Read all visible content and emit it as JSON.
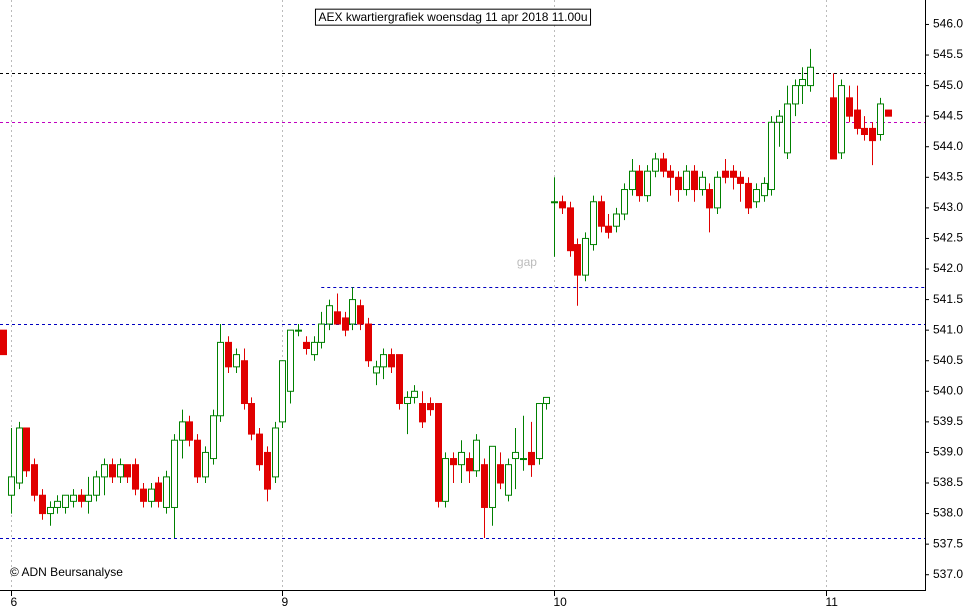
{
  "chart_data": {
    "type": "candlestick",
    "title": "AEX kwartiergrafiek woensdag 11 apr 2018 11.00u",
    "watermark": "© ADN Beursanalyse",
    "annotations": [
      {
        "text": "gap",
        "x": 66.5,
        "y": 542.1
      }
    ],
    "up_color": "#008000",
    "down_color": "#e00000",
    "xlim": [
      -1.4,
      117.8
    ],
    "ylim": [
      536.75,
      546.4
    ],
    "xticks": [
      {
        "value": 0,
        "label": "6"
      },
      {
        "value": 35,
        "label": "9"
      },
      {
        "value": 70,
        "label": "10"
      },
      {
        "value": 105,
        "label": "11"
      }
    ],
    "yticks": [
      {
        "value": 537,
        "label": "537.0"
      },
      {
        "value": 537.5,
        "label": "537.5"
      },
      {
        "value": 538,
        "label": "538.0"
      },
      {
        "value": 538.5,
        "label": "538.5"
      },
      {
        "value": 539,
        "label": "539.0"
      },
      {
        "value": 539.5,
        "label": "539.5"
      },
      {
        "value": 540,
        "label": "540.0"
      },
      {
        "value": 540.5,
        "label": "540.5"
      },
      {
        "value": 541,
        "label": "541.0"
      },
      {
        "value": 541.5,
        "label": "541.5"
      },
      {
        "value": 542,
        "label": "542.0"
      },
      {
        "value": 542.5,
        "label": "542.5"
      },
      {
        "value": 543,
        "label": "543.0"
      },
      {
        "value": 543.5,
        "label": "543.5"
      },
      {
        "value": 544,
        "label": "544.0"
      },
      {
        "value": 544.5,
        "label": "544.5"
      },
      {
        "value": 545,
        "label": "545.0"
      },
      {
        "value": 545.5,
        "label": "545.5"
      },
      {
        "value": 546,
        "label": "546.0"
      }
    ],
    "xgrid": true,
    "hlines": [
      {
        "value": 545.2,
        "color": "#000000",
        "from": -1.4
      },
      {
        "value": 544.4,
        "color": "#c000c0",
        "from": -1.4
      },
      {
        "value": 541.7,
        "color": "#0000c0",
        "from": 40
      },
      {
        "value": 541.1,
        "color": "#0000c0",
        "from": -1.4
      },
      {
        "value": 537.6,
        "color": "#0000c0",
        "from": -1.4
      }
    ],
    "x": [
      -1,
      0,
      1,
      2,
      3,
      4,
      5,
      6,
      7,
      8,
      9,
      10,
      11,
      12,
      13,
      14,
      15,
      16,
      17,
      18,
      19,
      20,
      21,
      22,
      23,
      24,
      25,
      26,
      27,
      28,
      29,
      30,
      31,
      32,
      33,
      34,
      35,
      36,
      37,
      38,
      39,
      40,
      41,
      42,
      43,
      44,
      45,
      46,
      47,
      48,
      49,
      50,
      51,
      52,
      53,
      54,
      55,
      56,
      57,
      58,
      59,
      60,
      61,
      62,
      63,
      64,
      65,
      66,
      67,
      68,
      69,
      70,
      71,
      72,
      73,
      74,
      75,
      76,
      77,
      78,
      79,
      80,
      81,
      82,
      83,
      84,
      85,
      86,
      87,
      88,
      89,
      90,
      91,
      92,
      93,
      94,
      95,
      96,
      97,
      98,
      99,
      100,
      101,
      102,
      103,
      106,
      107,
      108,
      109,
      110,
      111,
      112,
      113
    ],
    "open": [
      541.0,
      538.3,
      538.5,
      539.4,
      538.8,
      538.3,
      538.0,
      538.1,
      538.1,
      538.2,
      538.3,
      538.2,
      538.3,
      538.6,
      538.8,
      538.6,
      538.8,
      538.8,
      538.4,
      538.2,
      538.5,
      538.1,
      538.1,
      539.2,
      539.5,
      539.2,
      538.6,
      538.9,
      539.6,
      540.8,
      540.4,
      540.5,
      539.8,
      539.3,
      539.0,
      538.6,
      539.5,
      540.0,
      541.0,
      540.8,
      540.6,
      540.8,
      541.1,
      541.3,
      541.2,
      541.1,
      541.4,
      541.1,
      540.3,
      540.4,
      540.6,
      540.6,
      539.8,
      539.9,
      539.8,
      539.8,
      539.8,
      538.2,
      538.9,
      538.8,
      538.9,
      538.7,
      538.8,
      538.1,
      538.8,
      538.3,
      538.9,
      538.9,
      539.0,
      538.9,
      539.8,
      543.1,
      543.1,
      543.0,
      542.4,
      541.9,
      542.4,
      543.1,
      542.7,
      542.7,
      542.9,
      543.3,
      543.6,
      543.2,
      543.6,
      543.8,
      543.6,
      543.5,
      543.3,
      543.6,
      543.3,
      543.3,
      543.0,
      543.6,
      543.6,
      543.5,
      543.4,
      543.1,
      543.2,
      543.3,
      544.4,
      543.9,
      544.7,
      545.0,
      545.0,
      544.8,
      543.9,
      544.8,
      544.6,
      544.3,
      544.3,
      544.2,
      544.6
    ],
    "high": [
      541.0,
      539.4,
      539.5,
      539.4,
      538.9,
      538.4,
      538.2,
      538.3,
      538.3,
      538.4,
      538.4,
      538.6,
      538.7,
      538.9,
      538.9,
      538.9,
      538.8,
      538.9,
      538.5,
      538.5,
      538.6,
      538.7,
      539.3,
      539.7,
      539.6,
      539.3,
      539.1,
      539.7,
      541.1,
      540.9,
      540.7,
      540.7,
      539.9,
      539.4,
      539.1,
      539.5,
      540.5,
      541.0,
      541.1,
      540.9,
      540.9,
      541.3,
      541.5,
      541.6,
      541.3,
      541.7,
      541.5,
      541.2,
      540.5,
      540.7,
      540.7,
      540.6,
      540.0,
      540.1,
      540.0,
      539.9,
      539.8,
      539.0,
      539.0,
      539.2,
      539.0,
      539.3,
      538.9,
      539.1,
      539.0,
      538.9,
      539.4,
      539.6,
      539.5,
      539.8,
      539.9,
      543.5,
      543.2,
      543.1,
      542.5,
      542.6,
      543.2,
      543.2,
      542.9,
      543.0,
      543.4,
      543.8,
      543.7,
      543.7,
      543.9,
      543.9,
      543.7,
      543.6,
      543.7,
      543.7,
      543.6,
      543.4,
      543.6,
      543.8,
      543.7,
      543.6,
      543.5,
      543.4,
      543.5,
      544.5,
      544.6,
      545.0,
      545.1,
      545.3,
      545.6,
      545.2,
      545.1,
      545.0,
      545.0,
      544.5,
      544.4,
      544.8,
      544.6
    ],
    "low": [
      540.6,
      538.0,
      538.4,
      538.6,
      538.2,
      537.9,
      537.8,
      538.0,
      538.0,
      538.1,
      538.1,
      538.0,
      538.2,
      538.3,
      538.5,
      538.5,
      538.5,
      538.3,
      538.1,
      538.1,
      538.1,
      538.0,
      537.6,
      538.9,
      539.1,
      538.5,
      538.5,
      538.8,
      539.5,
      540.3,
      540.3,
      539.7,
      539.2,
      538.7,
      538.2,
      538.5,
      539.4,
      539.8,
      540.9,
      540.6,
      540.5,
      540.7,
      541.0,
      541.1,
      540.9,
      541.0,
      541.0,
      540.4,
      540.1,
      540.2,
      540.3,
      539.7,
      539.3,
      539.8,
      539.4,
      539.6,
      538.1,
      538.1,
      538.5,
      538.5,
      538.5,
      538.6,
      537.6,
      537.8,
      538.4,
      538.2,
      538.4,
      538.7,
      538.6,
      538.8,
      539.7,
      542.2,
      542.9,
      542.2,
      541.4,
      541.8,
      542.3,
      542.6,
      542.5,
      542.6,
      542.8,
      543.2,
      543.1,
      543.1,
      543.5,
      543.5,
      543.2,
      543.1,
      543.2,
      543.1,
      543.2,
      542.6,
      542.9,
      543.4,
      543.3,
      543.1,
      542.9,
      543.0,
      543.1,
      543.2,
      544.0,
      543.8,
      544.5,
      544.7,
      544.9,
      543.8,
      543.8,
      544.4,
      544.2,
      544.1,
      543.7,
      544.1,
      544.5
    ],
    "close": [
      540.6,
      538.6,
      539.4,
      538.7,
      538.3,
      538.0,
      538.1,
      538.2,
      538.3,
      538.3,
      538.2,
      538.3,
      538.6,
      538.8,
      538.6,
      538.8,
      538.6,
      538.4,
      538.2,
      538.4,
      538.2,
      538.6,
      539.2,
      539.5,
      539.2,
      538.6,
      539.0,
      539.6,
      540.8,
      540.4,
      540.6,
      539.8,
      539.3,
      538.8,
      538.4,
      539.4,
      540.5,
      541.0,
      541.0,
      540.7,
      540.8,
      541.1,
      541.4,
      541.1,
      541.0,
      541.5,
      541.1,
      540.5,
      540.4,
      540.6,
      540.4,
      539.8,
      539.9,
      540.0,
      539.5,
      539.7,
      538.2,
      538.9,
      538.8,
      539.0,
      538.7,
      539.2,
      538.1,
      539.1,
      538.5,
      538.8,
      539.0,
      538.9,
      538.8,
      539.8,
      539.9,
      543.1,
      543.0,
      542.3,
      541.9,
      542.5,
      543.1,
      542.7,
      542.6,
      542.9,
      543.3,
      543.6,
      543.2,
      543.6,
      543.8,
      543.6,
      543.5,
      543.3,
      543.6,
      543.3,
      543.5,
      543.0,
      543.5,
      543.5,
      543.5,
      543.4,
      543.0,
      543.3,
      543.4,
      544.4,
      544.5,
      544.7,
      545.0,
      545.1,
      545.3,
      543.8,
      545.0,
      544.5,
      544.3,
      544.2,
      544.1,
      544.7,
      544.5
    ]
  }
}
